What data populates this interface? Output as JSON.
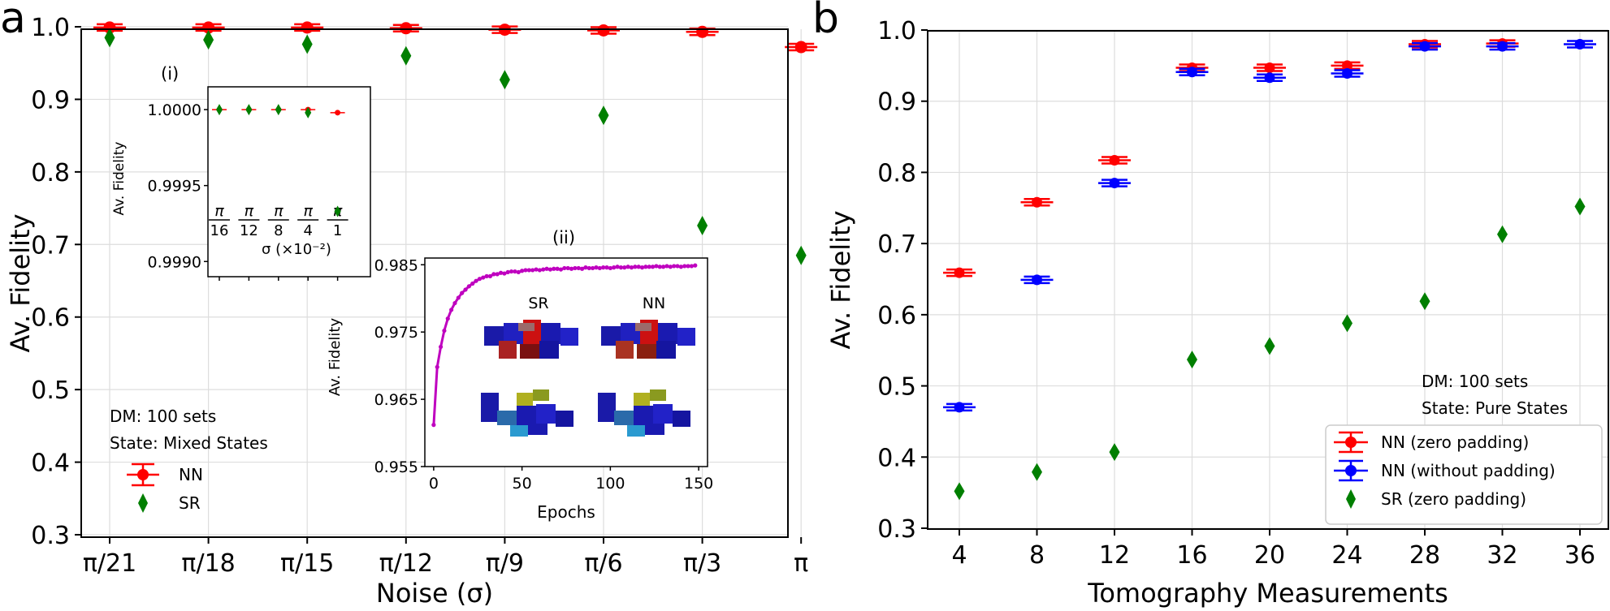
{
  "colors": {
    "nn": "#ff0000",
    "nn_nopad": "#0000ff",
    "sr": "#007f00",
    "curve": "#bf00bf",
    "grid": "#dddddd"
  },
  "chart_data": [
    {
      "id": "a",
      "panel_label": "a",
      "type": "scatter",
      "xlabel": "Noise (σ)",
      "ylabel": "Av. Fidelity",
      "categories": [
        "π/21",
        "π/18",
        "π/15",
        "π/12",
        "π/9",
        "π/6",
        "π/3",
        "π"
      ],
      "ylim": [
        0.3,
        1.0
      ],
      "yticks": [
        "0.3",
        "0.4",
        "0.5",
        "0.6",
        "0.7",
        "0.8",
        "0.9",
        "1.0"
      ],
      "grid": true,
      "legend_position": "lower-left",
      "annotations": [
        "DM: 100 sets",
        "State: Mixed States"
      ],
      "series": [
        {
          "name": "NN",
          "marker": "circle-errorbar",
          "values": [
            0.999,
            0.999,
            0.999,
            0.998,
            0.996,
            0.995,
            0.993,
            0.972
          ]
        },
        {
          "name": "SR",
          "marker": "diamond",
          "values": [
            0.985,
            0.982,
            0.976,
            0.96,
            0.927,
            0.878,
            0.726,
            0.685
          ]
        }
      ]
    },
    {
      "id": "a-inset-i",
      "inset_label": "(i)",
      "type": "scatter",
      "xlabel": "σ (×10⁻²)",
      "ylabel": "Av. Fidelity",
      "categories": [
        [
          "π",
          "16"
        ],
        [
          "π",
          "12"
        ],
        [
          "π",
          "8"
        ],
        [
          "π",
          "4"
        ],
        [
          "π",
          "1"
        ]
      ],
      "ylim": [
        0.9989,
        1.00015
      ],
      "yticks": [
        "0.9990",
        "0.9995",
        "1.0000"
      ],
      "series": [
        {
          "name": "NN",
          "marker": "circle",
          "values": [
            1.0,
            1.0,
            1.0,
            1.0,
            0.99998
          ]
        },
        {
          "name": "SR",
          "marker": "diamond",
          "values": [
            1.0,
            1.0,
            1.0,
            0.99998,
            0.99933
          ]
        }
      ]
    },
    {
      "id": "a-inset-ii",
      "inset_label": "(ii)",
      "type": "line",
      "xlabel": "Epochs",
      "ylabel": "Av. Fidelity",
      "xlim": [
        -5,
        155
      ],
      "ylim": [
        0.955,
        0.986
      ],
      "xticks": [
        "0",
        "50",
        "100",
        "150"
      ],
      "yticks": [
        "0.955",
        "0.965",
        "0.975",
        "0.985"
      ],
      "x": [
        0,
        2,
        4,
        6,
        8,
        10,
        12,
        14,
        16,
        18,
        20,
        22,
        24,
        26,
        28,
        30,
        32,
        34,
        36,
        38,
        40,
        42,
        44,
        46,
        48,
        50,
        52,
        54,
        56,
        58,
        60,
        62,
        64,
        66,
        68,
        70,
        72,
        74,
        76,
        78,
        80,
        82,
        84,
        86,
        88,
        90,
        92,
        94,
        96,
        98,
        100,
        102,
        104,
        106,
        108,
        110,
        112,
        114,
        116,
        118,
        120,
        122,
        124,
        126,
        128,
        130,
        132,
        134,
        136,
        138,
        140,
        142,
        144,
        146,
        148
      ],
      "values": [
        0.9612,
        0.9698,
        0.9728,
        0.9752,
        0.977,
        0.9783,
        0.9793,
        0.9801,
        0.9808,
        0.9813,
        0.9818,
        0.9822,
        0.9826,
        0.9829,
        0.9831,
        0.9833,
        0.9833,
        0.9836,
        0.9836,
        0.9838,
        0.9837,
        0.9839,
        0.984,
        0.984,
        0.9839,
        0.9841,
        0.9842,
        0.9842,
        0.9842,
        0.9843,
        0.9842,
        0.9843,
        0.9844,
        0.9843,
        0.9844,
        0.9844,
        0.9843,
        0.9845,
        0.9845,
        0.9844,
        0.9845,
        0.9845,
        0.9844,
        0.9846,
        0.9845,
        0.9845,
        0.9846,
        0.9845,
        0.9846,
        0.9846,
        0.9845,
        0.9846,
        0.9847,
        0.9846,
        0.9846,
        0.9847,
        0.9846,
        0.9847,
        0.9847,
        0.9846,
        0.9847,
        0.9847,
        0.9847,
        0.9848,
        0.9847,
        0.9847,
        0.9848,
        0.9847,
        0.9848,
        0.9848,
        0.9847,
        0.9848,
        0.9848,
        0.9848,
        0.9849
      ],
      "cubes_labels": [
        "SR",
        "NN"
      ]
    },
    {
      "id": "b",
      "panel_label": "b",
      "type": "scatter",
      "xlabel": "Tomography Measurements",
      "ylabel": "Av. Fidelity",
      "categories": [
        "4",
        "8",
        "12",
        "16",
        "20",
        "24",
        "28",
        "32",
        "36"
      ],
      "ylim": [
        0.3,
        1.0
      ],
      "yticks": [
        "0.3",
        "0.4",
        "0.5",
        "0.6",
        "0.7",
        "0.8",
        "0.9",
        "1.0"
      ],
      "grid": true,
      "legend_position": "lower-right",
      "annotations": [
        "DM: 100 sets",
        "State: Pure States"
      ],
      "series": [
        {
          "name": "NN (zero padding)",
          "marker": "circle-errorbar",
          "values": [
            0.659,
            0.758,
            0.817,
            0.947,
            0.947,
            0.95,
            0.98,
            0.981,
            null
          ]
        },
        {
          "name": "NN (without padding)",
          "marker": "circle-errorbar",
          "values": [
            0.47,
            0.649,
            0.785,
            0.941,
            0.933,
            0.939,
            0.977,
            0.977,
            0.98
          ]
        },
        {
          "name": "SR (zero padding)",
          "marker": "diamond",
          "values": [
            0.352,
            0.379,
            0.407,
            0.537,
            0.556,
            0.588,
            0.619,
            0.713,
            0.752
          ]
        }
      ]
    }
  ]
}
